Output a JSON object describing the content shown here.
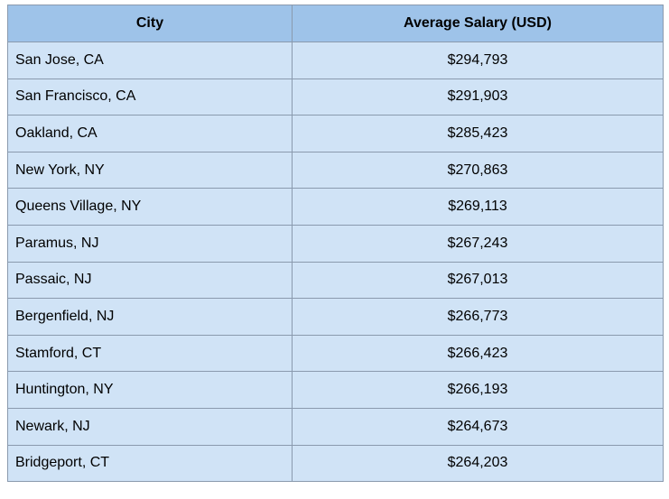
{
  "table": {
    "headers": [
      "City",
      "Average Salary (USD)"
    ],
    "rows": [
      {
        "city": "San Jose, CA",
        "salary": "$294,793"
      },
      {
        "city": "San Francisco, CA",
        "salary": "$291,903"
      },
      {
        "city": "Oakland, CA",
        "salary": "$285,423"
      },
      {
        "city": "New York, NY",
        "salary": "$270,863"
      },
      {
        "city": "Queens Village, NY",
        "salary": "$269,113"
      },
      {
        "city": "Paramus, NJ",
        "salary": "$267,243"
      },
      {
        "city": "Passaic, NJ",
        "salary": "$267,013"
      },
      {
        "city": "Bergenfield, NJ",
        "salary": "$266,773"
      },
      {
        "city": "Stamford, CT",
        "salary": "$266,423"
      },
      {
        "city": "Huntington, NY",
        "salary": "$266,193"
      },
      {
        "city": "Newark, NJ",
        "salary": "$264,673"
      },
      {
        "city": "Bridgeport, CT",
        "salary": "$264,203"
      }
    ]
  },
  "colors": {
    "header_bg": "#9ec3e9",
    "row_bg": "#d0e3f6",
    "border": "#8a9aae"
  }
}
